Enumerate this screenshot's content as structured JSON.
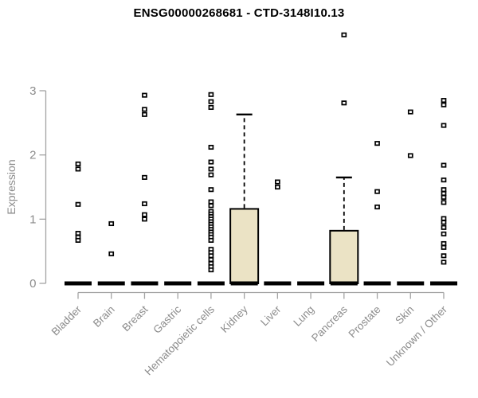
{
  "chart_data": {
    "type": "boxplot",
    "title": "ENSG00000268681 - CTD-3148I10.13",
    "ylabel": "Expression",
    "xlabel": "",
    "yticks": [
      0,
      1,
      2,
      3
    ],
    "ylim": [
      0,
      3
    ],
    "grid": false,
    "legend": "none",
    "colors": {
      "box_fill": "#EBE3C5",
      "box_stroke": "#000000",
      "median": "#000000",
      "outlier": "#000000",
      "axis_line": "#A3A3A3",
      "tick_text": "#8C8C8C",
      "title_text": "#000000"
    },
    "categories": [
      "Bladder",
      "Brain",
      "Breast",
      "Gastric",
      "Hematopoietic cells",
      "Kidney",
      "Liver",
      "Lung",
      "Pancreas",
      "Prostate",
      "Skin",
      "Unknown / Other"
    ],
    "series": [
      {
        "name": "Bladder",
        "median": 0,
        "q1": 0,
        "q3": 0,
        "whisker_low": 0,
        "whisker_high": 0,
        "outliers": [
          1.86,
          1.78,
          1.23,
          0.78,
          0.72,
          0.67
        ]
      },
      {
        "name": "Brain",
        "median": 0,
        "q1": 0,
        "q3": 0,
        "whisker_low": 0,
        "whisker_high": 0,
        "outliers": [
          0.93,
          0.46
        ]
      },
      {
        "name": "Breast",
        "median": 0,
        "q1": 0,
        "q3": 0,
        "whisker_low": 0,
        "whisker_high": 0,
        "outliers": [
          2.93,
          2.71,
          2.63,
          1.65,
          1.24,
          1.07,
          1.0
        ]
      },
      {
        "name": "Gastric",
        "median": 0,
        "q1": 0,
        "q3": 0,
        "whisker_low": 0,
        "whisker_high": 0,
        "outliers": []
      },
      {
        "name": "Hematopoietic cells",
        "median": 0,
        "q1": 0,
        "q3": 0,
        "whisker_low": 0,
        "whisker_high": 0,
        "outliers": [
          2.94,
          2.83,
          2.74,
          2.12,
          1.89,
          1.78,
          1.69,
          1.46,
          1.27,
          1.21,
          1.12,
          1.08,
          1.04,
          1.0,
          0.96,
          0.92,
          0.88,
          0.84,
          0.8,
          0.76,
          0.72,
          0.67,
          0.53,
          0.48,
          0.43,
          0.37,
          0.31,
          0.26,
          0.21
        ]
      },
      {
        "name": "Kidney",
        "median": 0,
        "q1": 0,
        "q3": 1.16,
        "whisker_low": 0,
        "whisker_high": 2.63,
        "outliers": []
      },
      {
        "name": "Liver",
        "median": 0,
        "q1": 0,
        "q3": 0,
        "whisker_low": 0,
        "whisker_high": 0,
        "outliers": [
          1.58,
          1.5
        ]
      },
      {
        "name": "Lung",
        "median": 0,
        "q1": 0,
        "q3": 0,
        "whisker_low": 0,
        "whisker_high": 0,
        "outliers": []
      },
      {
        "name": "Pancreas",
        "median": 0,
        "q1": 0,
        "q3": 0.82,
        "whisker_low": 0,
        "whisker_high": 1.65,
        "outliers": [
          3.87,
          2.81
        ]
      },
      {
        "name": "Prostate",
        "median": 0,
        "q1": 0,
        "q3": 0,
        "whisker_low": 0,
        "whisker_high": 0,
        "outliers": [
          2.18,
          1.43,
          1.19
        ]
      },
      {
        "name": "Skin",
        "median": 0,
        "q1": 0,
        "q3": 0,
        "whisker_low": 0,
        "whisker_high": 0,
        "outliers": [
          2.67,
          1.99
        ]
      },
      {
        "name": "Unknown / Other",
        "median": 0,
        "q1": 0,
        "q3": 0,
        "whisker_low": 0,
        "whisker_high": 0,
        "outliers": [
          2.85,
          2.78,
          2.46,
          1.84,
          1.61,
          1.46,
          1.4,
          1.34,
          1.26,
          1.01,
          0.95,
          0.87,
          0.77,
          0.62,
          0.56,
          0.43,
          0.33
        ]
      }
    ]
  }
}
